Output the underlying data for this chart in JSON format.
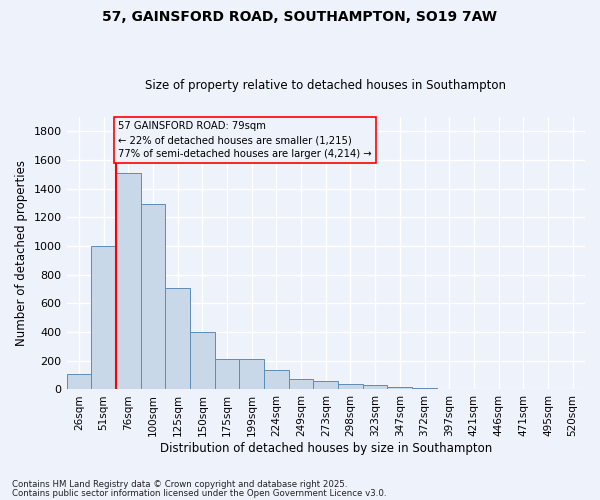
{
  "title1": "57, GAINSFORD ROAD, SOUTHAMPTON, SO19 7AW",
  "title2": "Size of property relative to detached houses in Southampton",
  "xlabel": "Distribution of detached houses by size in Southampton",
  "ylabel": "Number of detached properties",
  "categories": [
    "26sqm",
    "51sqm",
    "76sqm",
    "100sqm",
    "125sqm",
    "150sqm",
    "175sqm",
    "199sqm",
    "224sqm",
    "249sqm",
    "273sqm",
    "298sqm",
    "323sqm",
    "347sqm",
    "372sqm",
    "397sqm",
    "421sqm",
    "446sqm",
    "471sqm",
    "495sqm",
    "520sqm"
  ],
  "values": [
    110,
    1000,
    1510,
    1290,
    710,
    400,
    215,
    215,
    135,
    75,
    60,
    38,
    30,
    17,
    10,
    0,
    0,
    0,
    0,
    0,
    0
  ],
  "bar_color": "#c8d8e8",
  "bar_edge_color": "#5b8db8",
  "annotation_line1": "57 GAINSFORD ROAD: 79sqm",
  "annotation_line2": "← 22% of detached houses are smaller (1,215)",
  "annotation_line3": "77% of semi-detached houses are larger (4,214) →",
  "red_line_x": 2,
  "ylim": [
    0,
    1900
  ],
  "yticks": [
    0,
    200,
    400,
    600,
    800,
    1000,
    1200,
    1400,
    1600,
    1800
  ],
  "background_color": "#eef2fb",
  "grid_color": "#ffffff",
  "footer1": "Contains HM Land Registry data © Crown copyright and database right 2025.",
  "footer2": "Contains public sector information licensed under the Open Government Licence v3.0."
}
